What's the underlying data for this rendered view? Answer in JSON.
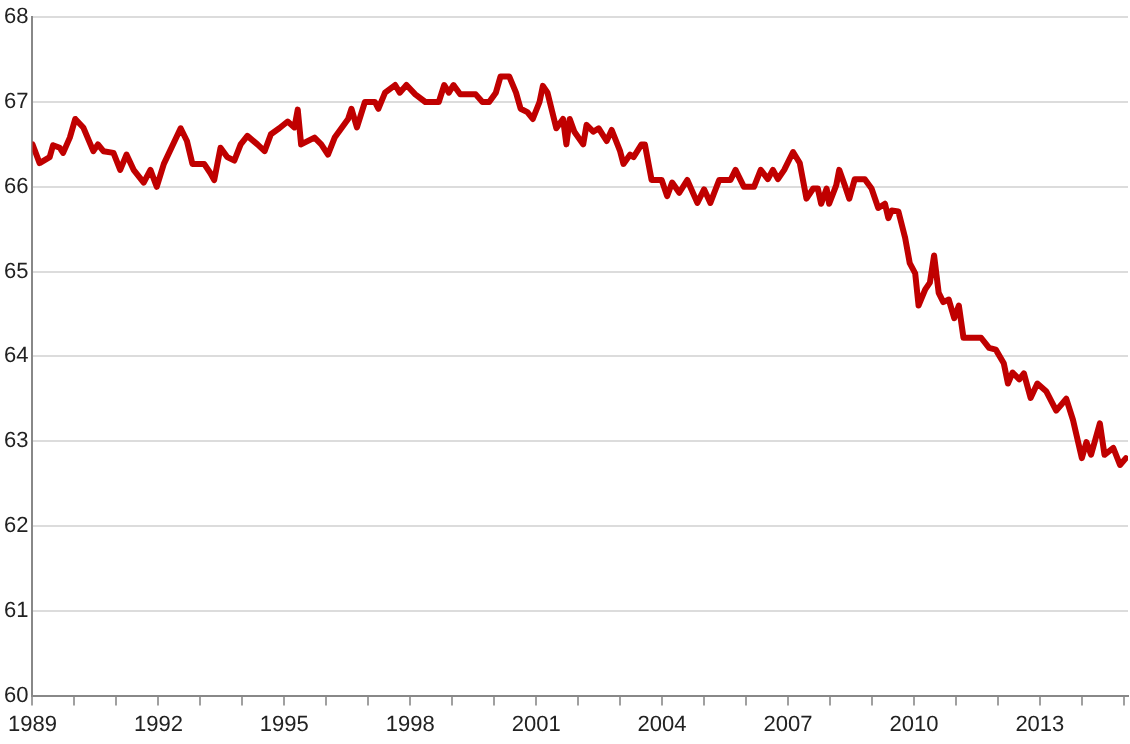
{
  "chart_data": {
    "type": "line",
    "x": [
      1989.0,
      1989.17,
      1989.41,
      1989.49,
      1989.65,
      1989.73,
      1989.89,
      1990.02,
      1990.21,
      1990.45,
      1990.56,
      1990.69,
      1990.93,
      1991.09,
      1991.24,
      1991.41,
      1991.65,
      1991.81,
      1991.96,
      1992.13,
      1992.53,
      1992.68,
      1992.81,
      1993.09,
      1993.24,
      1993.33,
      1993.48,
      1993.64,
      1993.81,
      1993.96,
      1994.12,
      1994.36,
      1994.53,
      1994.68,
      1994.88,
      1995.08,
      1995.24,
      1995.32,
      1995.4,
      1995.72,
      1995.88,
      1996.04,
      1996.2,
      1996.36,
      1996.52,
      1996.6,
      1996.73,
      1996.92,
      1997.16,
      1997.24,
      1997.4,
      1997.56,
      1997.64,
      1997.75,
      1997.91,
      1998.12,
      1998.36,
      1998.68,
      1998.81,
      1998.92,
      1999.03,
      1999.19,
      1999.56,
      1999.72,
      1999.88,
      2000.04,
      2000.15,
      2000.36,
      2000.52,
      2000.63,
      2000.79,
      2000.92,
      2001.08,
      2001.16,
      2001.27,
      2001.48,
      2001.64,
      2001.72,
      2001.8,
      2001.91,
      2002.12,
      2002.2,
      2002.36,
      2002.49,
      2002.68,
      2002.8,
      2003.0,
      2003.08,
      2003.24,
      2003.32,
      2003.51,
      2003.59,
      2003.75,
      2003.99,
      2004.12,
      2004.24,
      2004.41,
      2004.6,
      2004.84,
      2005.0,
      2005.15,
      2005.36,
      2005.63,
      2005.75,
      2005.95,
      2006.19,
      2006.35,
      2006.52,
      2006.64,
      2006.76,
      2006.91,
      2007.12,
      2007.28,
      2007.44,
      2007.6,
      2007.71,
      2007.79,
      2007.92,
      2007.98,
      2008.15,
      2008.22,
      2008.35,
      2008.46,
      2008.59,
      2008.83,
      2008.99,
      2009.15,
      2009.31,
      2009.39,
      2009.47,
      2009.63,
      2009.79,
      2009.9,
      2010.03,
      2010.11,
      2010.27,
      2010.38,
      2010.48,
      2010.59,
      2010.7,
      2010.83,
      2010.96,
      2011.07,
      2011.18,
      2011.31,
      2011.6,
      2011.79,
      2011.95,
      2012.14,
      2012.24,
      2012.35,
      2012.51,
      2012.62,
      2012.78,
      2012.94,
      2013.15,
      2013.39,
      2013.63,
      2013.79,
      2014.0,
      2014.11,
      2014.22,
      2014.43,
      2014.54,
      2014.75,
      2014.91,
      2015.05
    ],
    "series": [
      {
        "color": "#c00000",
        "values": [
          66.5,
          66.28,
          66.35,
          66.49,
          66.46,
          66.4,
          66.58,
          66.8,
          66.7,
          66.42,
          66.5,
          66.42,
          66.4,
          66.2,
          66.38,
          66.2,
          66.05,
          66.2,
          66.0,
          66.27,
          66.69,
          66.54,
          66.27,
          66.27,
          66.16,
          66.08,
          66.46,
          66.35,
          66.31,
          66.5,
          66.6,
          66.5,
          66.42,
          66.62,
          66.69,
          66.77,
          66.7,
          66.91,
          66.5,
          66.58,
          66.5,
          66.38,
          66.58,
          66.69,
          66.8,
          66.92,
          66.7,
          67.0,
          67.0,
          66.92,
          67.11,
          67.17,
          67.2,
          67.11,
          67.2,
          67.09,
          67.0,
          67.0,
          67.2,
          67.11,
          67.2,
          67.09,
          67.09,
          67.0,
          67.0,
          67.11,
          67.3,
          67.3,
          67.11,
          66.92,
          66.88,
          66.8,
          67.0,
          67.19,
          67.11,
          66.69,
          66.8,
          66.5,
          66.8,
          66.65,
          66.5,
          66.73,
          66.65,
          66.69,
          66.54,
          66.67,
          66.42,
          66.27,
          66.38,
          66.35,
          66.5,
          66.5,
          66.08,
          66.08,
          65.89,
          66.05,
          65.93,
          66.08,
          65.81,
          65.97,
          65.81,
          66.08,
          66.08,
          66.2,
          66.0,
          66.0,
          66.2,
          66.09,
          66.2,
          66.09,
          66.2,
          66.41,
          66.28,
          65.86,
          65.98,
          65.98,
          65.8,
          65.98,
          65.8,
          66.02,
          66.2,
          66.02,
          65.86,
          66.09,
          66.09,
          65.98,
          65.75,
          65.8,
          65.63,
          65.72,
          65.71,
          65.4,
          65.1,
          64.98,
          64.6,
          64.79,
          64.87,
          65.19,
          64.75,
          64.64,
          64.67,
          64.45,
          64.6,
          64.22,
          64.22,
          64.22,
          64.1,
          64.08,
          63.92,
          63.68,
          63.81,
          63.73,
          63.8,
          63.51,
          63.68,
          63.59,
          63.36,
          63.5,
          63.25,
          62.8,
          62.99,
          62.84,
          63.21,
          62.84,
          62.92,
          62.72,
          62.8
        ]
      }
    ],
    "xlim": [
      1989,
      2015.1
    ],
    "xticks": [
      1989,
      {
        "value": 1990,
        "label": null
      },
      {
        "value": 1991,
        "label": null
      },
      1992,
      {
        "value": 1993,
        "label": null
      },
      {
        "value": 1994,
        "label": null
      },
      1995,
      {
        "value": 1996,
        "label": null
      },
      {
        "value": 1997,
        "label": null
      },
      1998,
      {
        "value": 1999,
        "label": null
      },
      {
        "value": 2000,
        "label": null
      },
      2001,
      {
        "value": 2002,
        "label": null
      },
      {
        "value": 2003,
        "label": null
      },
      2004,
      {
        "value": 2005,
        "label": null
      },
      {
        "value": 2006,
        "label": null
      },
      2007,
      {
        "value": 2008,
        "label": null
      },
      {
        "value": 2009,
        "label": null
      },
      2010,
      {
        "value": 2011,
        "label": null
      },
      {
        "value": 2012,
        "label": null
      },
      2013,
      {
        "value": 2014,
        "label": null
      },
      {
        "value": 2015,
        "label": null
      }
    ],
    "ylim": [
      60,
      68
    ],
    "yticks": [
      60,
      61,
      62,
      63,
      64,
      65,
      66,
      67,
      68
    ],
    "grid": "y",
    "legend": false,
    "marker": "none",
    "line_style": "solid"
  }
}
